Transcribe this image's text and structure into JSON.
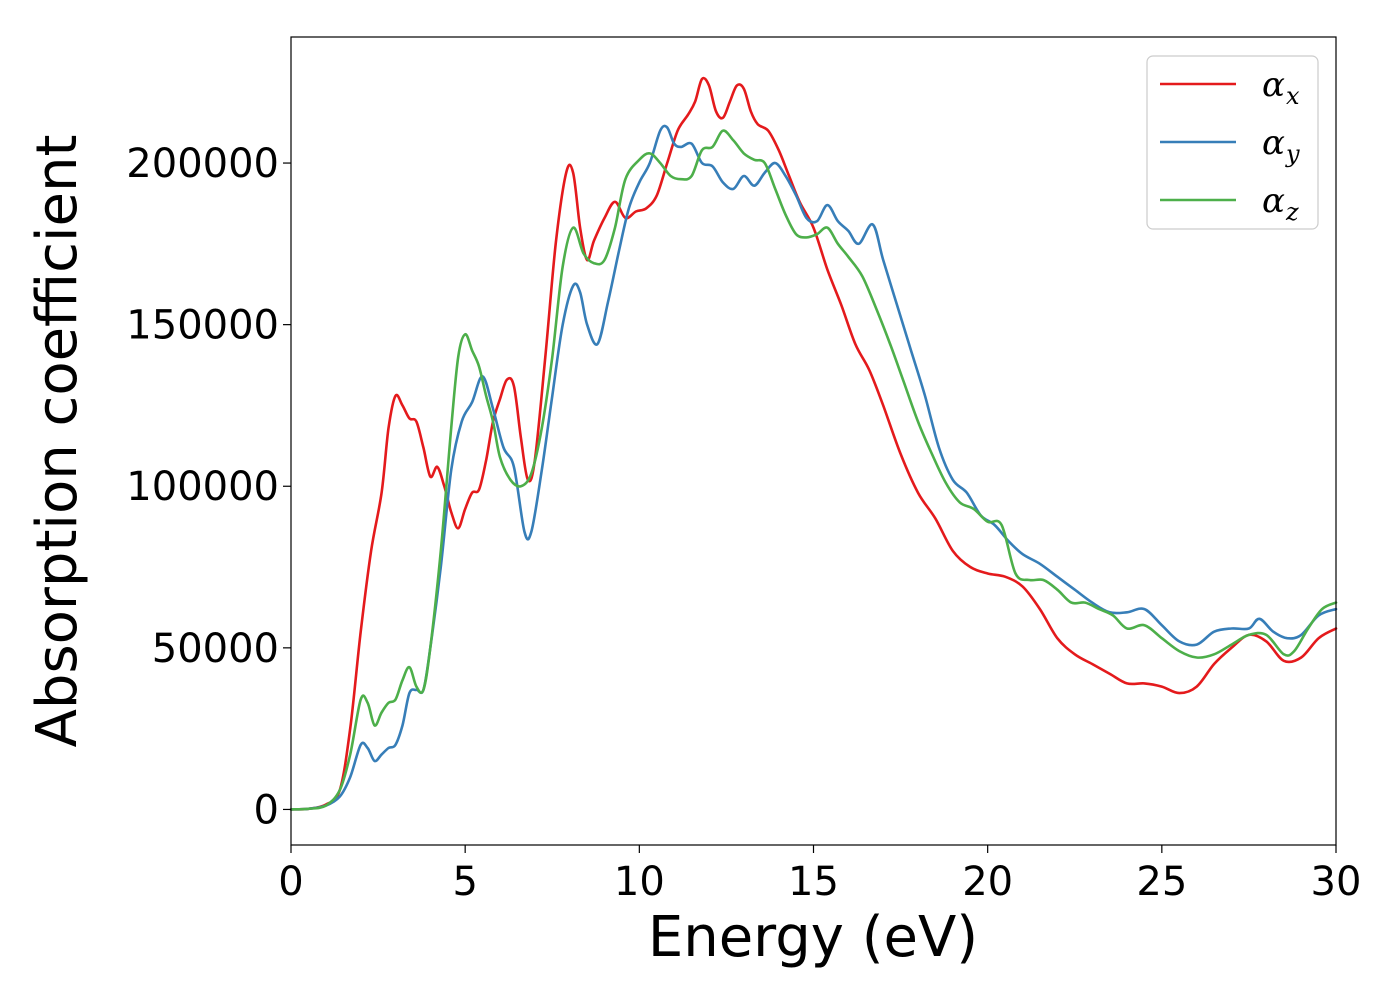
{
  "chart_data": {
    "type": "line",
    "xlabel": "Energy (eV)",
    "ylabel": "Absorption coefficient",
    "xlim": [
      0,
      30
    ],
    "ylim": [
      -11000,
      239000
    ],
    "xticks": [
      0,
      5,
      10,
      15,
      20,
      25,
      30
    ],
    "yticks": [
      0,
      50000,
      100000,
      150000,
      200000
    ],
    "xtick_labels": [
      "0",
      "5",
      "10",
      "15",
      "20",
      "25",
      "30"
    ],
    "ytick_labels": [
      "0",
      "50000",
      "100000",
      "150000",
      "200000"
    ],
    "grid": false,
    "legend_position": "top-right",
    "series": [
      {
        "name": "α",
        "subscript": "x",
        "color": "#e41a1c",
        "points": [
          [
            0,
            0
          ],
          [
            0.5,
            200
          ],
          [
            1.0,
            1500
          ],
          [
            1.4,
            6000
          ],
          [
            1.7,
            25000
          ],
          [
            2.0,
            55000
          ],
          [
            2.3,
            80000
          ],
          [
            2.6,
            98000
          ],
          [
            2.8,
            118000
          ],
          [
            3.0,
            128000
          ],
          [
            3.2,
            125000
          ],
          [
            3.4,
            121000
          ],
          [
            3.6,
            120000
          ],
          [
            3.8,
            112000
          ],
          [
            4.0,
            103000
          ],
          [
            4.2,
            106000
          ],
          [
            4.4,
            100000
          ],
          [
            4.6,
            92000
          ],
          [
            4.8,
            87000
          ],
          [
            5.0,
            93000
          ],
          [
            5.2,
            98000
          ],
          [
            5.4,
            99000
          ],
          [
            5.6,
            108000
          ],
          [
            5.8,
            120000
          ],
          [
            6.0,
            127000
          ],
          [
            6.2,
            133000
          ],
          [
            6.4,
            131000
          ],
          [
            6.6,
            115000
          ],
          [
            6.8,
            102000
          ],
          [
            7.0,
            108000
          ],
          [
            7.3,
            140000
          ],
          [
            7.6,
            175000
          ],
          [
            7.9,
            197000
          ],
          [
            8.1,
            197000
          ],
          [
            8.3,
            180000
          ],
          [
            8.5,
            170000
          ],
          [
            8.7,
            176000
          ],
          [
            9.0,
            183000
          ],
          [
            9.3,
            188000
          ],
          [
            9.6,
            183000
          ],
          [
            9.9,
            185000
          ],
          [
            10.2,
            186000
          ],
          [
            10.5,
            190000
          ],
          [
            10.8,
            200000
          ],
          [
            11.1,
            210000
          ],
          [
            11.4,
            215000
          ],
          [
            11.6,
            219000
          ],
          [
            11.8,
            226000
          ],
          [
            12.0,
            224000
          ],
          [
            12.2,
            216000
          ],
          [
            12.4,
            214000
          ],
          [
            12.6,
            219000
          ],
          [
            12.8,
            224000
          ],
          [
            13.0,
            223000
          ],
          [
            13.2,
            216000
          ],
          [
            13.4,
            212000
          ],
          [
            13.7,
            210000
          ],
          [
            14.0,
            204000
          ],
          [
            14.3,
            196000
          ],
          [
            14.6,
            188000
          ],
          [
            15.0,
            180000
          ],
          [
            15.4,
            167000
          ],
          [
            15.8,
            156000
          ],
          [
            16.2,
            144000
          ],
          [
            16.6,
            136000
          ],
          [
            17.0,
            125000
          ],
          [
            17.5,
            110000
          ],
          [
            18.0,
            98000
          ],
          [
            18.5,
            90000
          ],
          [
            19.0,
            80000
          ],
          [
            19.5,
            75000
          ],
          [
            20.0,
            73000
          ],
          [
            20.5,
            72000
          ],
          [
            21.0,
            69000
          ],
          [
            21.5,
            62000
          ],
          [
            22.0,
            53000
          ],
          [
            22.5,
            48000
          ],
          [
            23.0,
            45000
          ],
          [
            23.5,
            42000
          ],
          [
            24.0,
            39000
          ],
          [
            24.5,
            39000
          ],
          [
            25.0,
            38000
          ],
          [
            25.5,
            36000
          ],
          [
            26.0,
            38000
          ],
          [
            26.5,
            45000
          ],
          [
            27.0,
            50000
          ],
          [
            27.5,
            54000
          ],
          [
            28.0,
            52000
          ],
          [
            28.5,
            46000
          ],
          [
            29.0,
            47000
          ],
          [
            29.5,
            53000
          ],
          [
            30.0,
            56000
          ]
        ]
      },
      {
        "name": "α",
        "subscript": "y",
        "color": "#377eb8",
        "points": [
          [
            0,
            0
          ],
          [
            0.5,
            200
          ],
          [
            1.0,
            1200
          ],
          [
            1.4,
            4000
          ],
          [
            1.7,
            10000
          ],
          [
            2.0,
            20000
          ],
          [
            2.2,
            19000
          ],
          [
            2.4,
            15000
          ],
          [
            2.6,
            17000
          ],
          [
            2.8,
            19000
          ],
          [
            3.0,
            20000
          ],
          [
            3.2,
            26000
          ],
          [
            3.4,
            36000
          ],
          [
            3.6,
            37000
          ],
          [
            3.8,
            37000
          ],
          [
            4.0,
            50000
          ],
          [
            4.3,
            75000
          ],
          [
            4.6,
            105000
          ],
          [
            4.9,
            120000
          ],
          [
            5.2,
            126000
          ],
          [
            5.5,
            134000
          ],
          [
            5.8,
            124000
          ],
          [
            6.1,
            112000
          ],
          [
            6.4,
            106000
          ],
          [
            6.7,
            86000
          ],
          [
            6.9,
            86000
          ],
          [
            7.2,
            105000
          ],
          [
            7.5,
            128000
          ],
          [
            7.8,
            150000
          ],
          [
            8.1,
            162000
          ],
          [
            8.3,
            160000
          ],
          [
            8.5,
            150000
          ],
          [
            8.8,
            144000
          ],
          [
            9.1,
            157000
          ],
          [
            9.4,
            172000
          ],
          [
            9.7,
            186000
          ],
          [
            10.0,
            194000
          ],
          [
            10.3,
            200000
          ],
          [
            10.6,
            210000
          ],
          [
            10.8,
            211000
          ],
          [
            11.0,
            206000
          ],
          [
            11.2,
            205000
          ],
          [
            11.5,
            206000
          ],
          [
            11.8,
            200000
          ],
          [
            12.1,
            199000
          ],
          [
            12.4,
            194000
          ],
          [
            12.7,
            192000
          ],
          [
            13.0,
            196000
          ],
          [
            13.3,
            193000
          ],
          [
            13.6,
            197000
          ],
          [
            13.9,
            200000
          ],
          [
            14.2,
            196000
          ],
          [
            14.5,
            190000
          ],
          [
            14.8,
            183000
          ],
          [
            15.1,
            182000
          ],
          [
            15.4,
            187000
          ],
          [
            15.7,
            182000
          ],
          [
            16.0,
            179000
          ],
          [
            16.3,
            175000
          ],
          [
            16.7,
            181000
          ],
          [
            17.0,
            170000
          ],
          [
            17.4,
            156000
          ],
          [
            17.8,
            142000
          ],
          [
            18.2,
            128000
          ],
          [
            18.6,
            112000
          ],
          [
            19.0,
            102000
          ],
          [
            19.4,
            98000
          ],
          [
            19.8,
            91000
          ],
          [
            20.2,
            88000
          ],
          [
            20.6,
            83000
          ],
          [
            21.0,
            79000
          ],
          [
            21.5,
            76000
          ],
          [
            22.0,
            72000
          ],
          [
            22.5,
            68000
          ],
          [
            23.0,
            64000
          ],
          [
            23.5,
            61000
          ],
          [
            24.0,
            61000
          ],
          [
            24.5,
            62000
          ],
          [
            25.0,
            57000
          ],
          [
            25.5,
            52000
          ],
          [
            26.0,
            51000
          ],
          [
            26.5,
            55000
          ],
          [
            27.0,
            56000
          ],
          [
            27.5,
            56000
          ],
          [
            27.8,
            59000
          ],
          [
            28.2,
            55000
          ],
          [
            28.6,
            53000
          ],
          [
            29.0,
            54000
          ],
          [
            29.5,
            60000
          ],
          [
            30.0,
            62000
          ]
        ]
      },
      {
        "name": "α",
        "subscript": "z",
        "color": "#4daf4a",
        "points": [
          [
            0,
            0
          ],
          [
            0.5,
            200
          ],
          [
            1.0,
            1200
          ],
          [
            1.4,
            6000
          ],
          [
            1.7,
            17000
          ],
          [
            2.0,
            34000
          ],
          [
            2.2,
            33000
          ],
          [
            2.4,
            26000
          ],
          [
            2.6,
            30000
          ],
          [
            2.8,
            33000
          ],
          [
            3.0,
            34000
          ],
          [
            3.2,
            40000
          ],
          [
            3.4,
            44000
          ],
          [
            3.6,
            38000
          ],
          [
            3.8,
            37000
          ],
          [
            4.0,
            50000
          ],
          [
            4.3,
            80000
          ],
          [
            4.6,
            118000
          ],
          [
            4.8,
            140000
          ],
          [
            5.0,
            147000
          ],
          [
            5.2,
            142000
          ],
          [
            5.4,
            137000
          ],
          [
            5.6,
            128000
          ],
          [
            5.8,
            120000
          ],
          [
            6.0,
            109000
          ],
          [
            6.3,
            102000
          ],
          [
            6.6,
            100000
          ],
          [
            6.9,
            104000
          ],
          [
            7.2,
            118000
          ],
          [
            7.5,
            140000
          ],
          [
            7.8,
            168000
          ],
          [
            8.1,
            180000
          ],
          [
            8.4,
            172000
          ],
          [
            8.7,
            169000
          ],
          [
            9.0,
            170000
          ],
          [
            9.3,
            180000
          ],
          [
            9.6,
            195000
          ],
          [
            10.0,
            201000
          ],
          [
            10.3,
            203000
          ],
          [
            10.6,
            200000
          ],
          [
            10.9,
            196000
          ],
          [
            11.2,
            195000
          ],
          [
            11.5,
            196000
          ],
          [
            11.8,
            204000
          ],
          [
            12.1,
            205000
          ],
          [
            12.4,
            210000
          ],
          [
            12.7,
            207000
          ],
          [
            13.0,
            203000
          ],
          [
            13.3,
            201000
          ],
          [
            13.6,
            200000
          ],
          [
            13.9,
            192000
          ],
          [
            14.2,
            184000
          ],
          [
            14.5,
            178000
          ],
          [
            14.8,
            177000
          ],
          [
            15.1,
            178000
          ],
          [
            15.4,
            180000
          ],
          [
            15.7,
            175000
          ],
          [
            16.0,
            171000
          ],
          [
            16.4,
            165000
          ],
          [
            16.8,
            155000
          ],
          [
            17.2,
            144000
          ],
          [
            17.6,
            132000
          ],
          [
            18.0,
            120000
          ],
          [
            18.4,
            110000
          ],
          [
            18.8,
            101000
          ],
          [
            19.2,
            95000
          ],
          [
            19.6,
            93000
          ],
          [
            20.0,
            89000
          ],
          [
            20.4,
            88000
          ],
          [
            20.8,
            73000
          ],
          [
            21.2,
            71000
          ],
          [
            21.6,
            71000
          ],
          [
            22.0,
            68000
          ],
          [
            22.4,
            64000
          ],
          [
            22.8,
            64000
          ],
          [
            23.2,
            62000
          ],
          [
            23.6,
            60000
          ],
          [
            24.0,
            56000
          ],
          [
            24.5,
            57000
          ],
          [
            25.0,
            53000
          ],
          [
            25.5,
            49000
          ],
          [
            26.0,
            47000
          ],
          [
            26.5,
            48000
          ],
          [
            27.0,
            51000
          ],
          [
            27.5,
            54000
          ],
          [
            28.0,
            54000
          ],
          [
            28.5,
            48000
          ],
          [
            28.8,
            49000
          ],
          [
            29.2,
            56000
          ],
          [
            29.6,
            62000
          ],
          [
            30.0,
            64000
          ]
        ]
      }
    ]
  }
}
